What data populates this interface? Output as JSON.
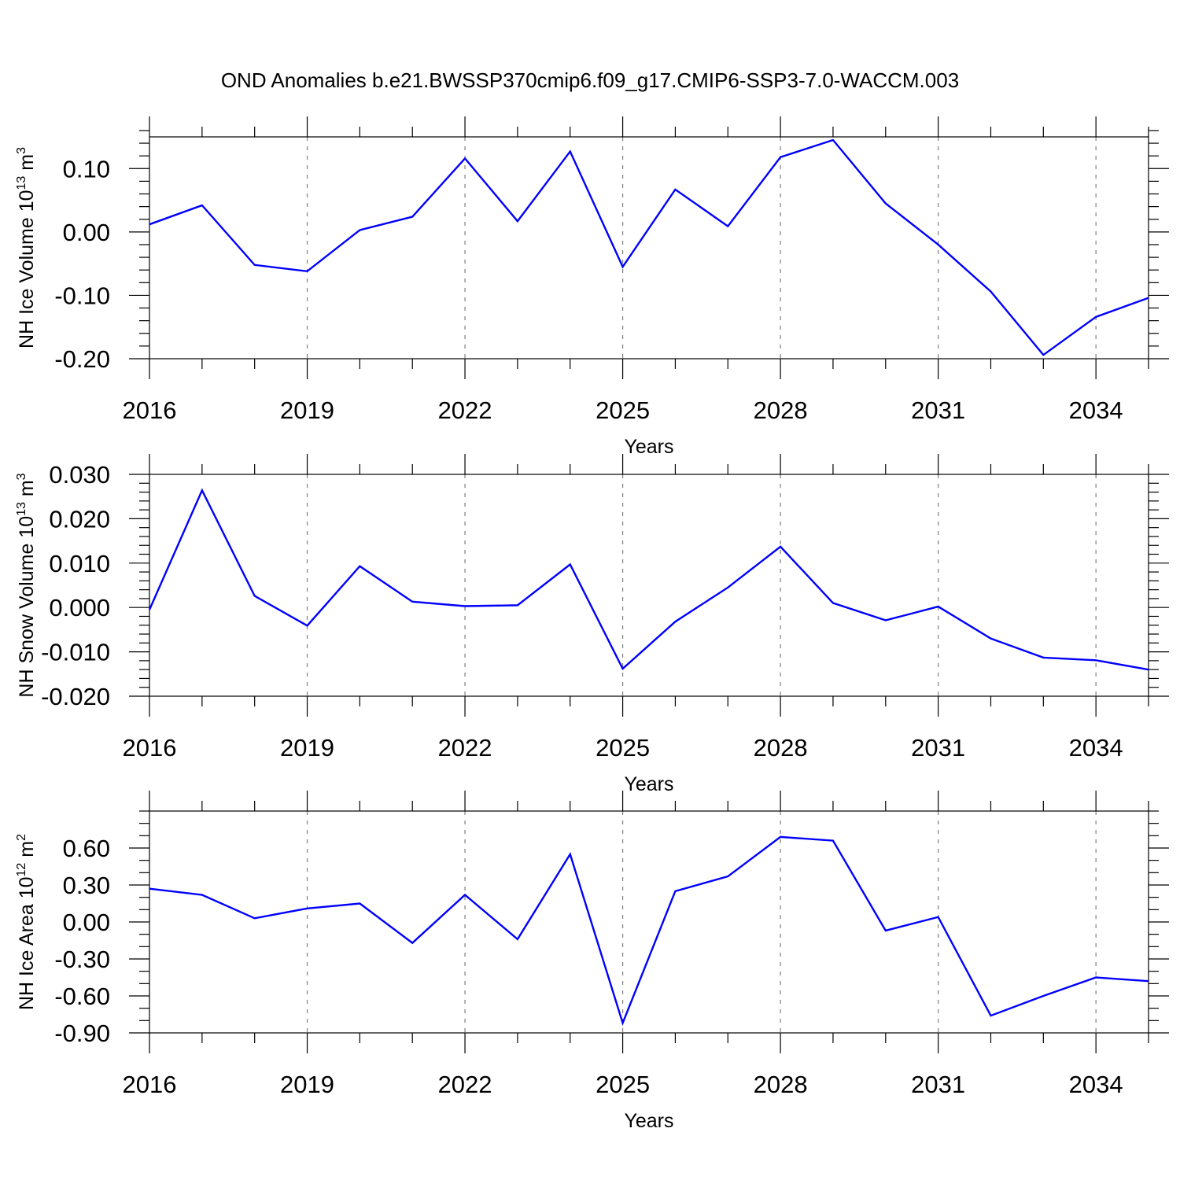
{
  "title": "OND Anomalies b.e21.BWSSP370cmip6.f09_g17.CMIP6-SSP3-7.0-WACCM.003",
  "chart_data": [
    {
      "type": "line",
      "ylabel": "NH Ice Volume 10",
      "ylabel_exp": "13",
      "ylabel_unit": " m",
      "ylabel_unit_exp": "3",
      "xlabel": "Years",
      "xlim": [
        2016,
        2035
      ],
      "ylim": [
        -0.2,
        0.15
      ],
      "xticks": [
        2016,
        2019,
        2022,
        2025,
        2028,
        2031,
        2034
      ],
      "xtick_labels": [
        "2016",
        "2019",
        "2022",
        "2025",
        "2028",
        "2031",
        "2034"
      ],
      "yticks": [
        -0.2,
        -0.1,
        0.0,
        0.1
      ],
      "ytick_labels": [
        "-0.20",
        "-0.10",
        "0.00",
        "0.10"
      ],
      "y_minor_step": 0.02,
      "grid": "vertical-dashed",
      "x": [
        2016,
        2017,
        2018,
        2019,
        2020,
        2021,
        2022,
        2023,
        2024,
        2025,
        2026,
        2027,
        2028,
        2029,
        2030,
        2031,
        2032,
        2033,
        2034,
        2035
      ],
      "series": [
        {
          "name": "NH Ice Volume",
          "color": "#0000ff",
          "values": [
            0.012,
            0.042,
            -0.052,
            -0.062,
            0.003,
            0.024,
            0.116,
            0.017,
            0.127,
            -0.055,
            0.067,
            0.009,
            0.118,
            0.145,
            0.045,
            -0.02,
            -0.094,
            -0.194,
            -0.134,
            -0.104
          ]
        }
      ]
    },
    {
      "type": "line",
      "ylabel": "NH Snow Volume 10",
      "ylabel_exp": "13",
      "ylabel_unit": " m",
      "ylabel_unit_exp": "3",
      "xlabel": "Years",
      "xlim": [
        2016,
        2035
      ],
      "ylim": [
        -0.02,
        0.03
      ],
      "xticks": [
        2016,
        2019,
        2022,
        2025,
        2028,
        2031,
        2034
      ],
      "xtick_labels": [
        "2016",
        "2019",
        "2022",
        "2025",
        "2028",
        "2031",
        "2034"
      ],
      "yticks": [
        -0.02,
        -0.01,
        0.0,
        0.01,
        0.02,
        0.03
      ],
      "ytick_labels": [
        "-0.020",
        "-0.010",
        "0.000",
        "0.010",
        "0.020",
        "0.030"
      ],
      "y_minor_step": 0.002,
      "grid": "vertical-dashed",
      "x": [
        2016,
        2017,
        2018,
        2019,
        2020,
        2021,
        2022,
        2023,
        2024,
        2025,
        2026,
        2027,
        2028,
        2029,
        2030,
        2031,
        2032,
        2033,
        2034,
        2035
      ],
      "series": [
        {
          "name": "NH Snow Volume",
          "color": "#0000ff",
          "values": [
            -0.0005,
            0.0264,
            0.0026,
            -0.0041,
            0.0093,
            0.0013,
            0.0003,
            0.0005,
            0.0097,
            -0.0138,
            -0.0032,
            0.0045,
            0.0137,
            0.001,
            -0.0029,
            0.0002,
            -0.007,
            -0.0113,
            -0.0119,
            -0.014
          ]
        }
      ]
    },
    {
      "type": "line",
      "ylabel": "NH Ice Area 10",
      "ylabel_exp": "12",
      "ylabel_unit": " m",
      "ylabel_unit_exp": "2",
      "xlabel": "Years",
      "xlim": [
        2016,
        2035
      ],
      "ylim": [
        -0.9,
        0.9
      ],
      "xticks": [
        2016,
        2019,
        2022,
        2025,
        2028,
        2031,
        2034
      ],
      "xtick_labels": [
        "2016",
        "2019",
        "2022",
        "2025",
        "2028",
        "2031",
        "2034"
      ],
      "yticks": [
        -0.9,
        -0.6,
        -0.3,
        0.0,
        0.3,
        0.6
      ],
      "ytick_labels": [
        "-0.90",
        "-0.60",
        "-0.30",
        "0.00",
        "0.30",
        "0.60"
      ],
      "y_minor_step": 0.1,
      "grid": "vertical-dashed",
      "x": [
        2016,
        2017,
        2018,
        2019,
        2020,
        2021,
        2022,
        2023,
        2024,
        2025,
        2026,
        2027,
        2028,
        2029,
        2030,
        2031,
        2032,
        2033,
        2034,
        2035
      ],
      "series": [
        {
          "name": "NH Ice Area",
          "color": "#0000ff",
          "values": [
            0.27,
            0.22,
            0.03,
            0.11,
            0.15,
            -0.17,
            0.22,
            -0.14,
            0.55,
            -0.82,
            0.25,
            0.37,
            0.69,
            0.66,
            -0.07,
            0.04,
            -0.76,
            -0.6,
            -0.45,
            -0.48
          ]
        }
      ]
    }
  ]
}
